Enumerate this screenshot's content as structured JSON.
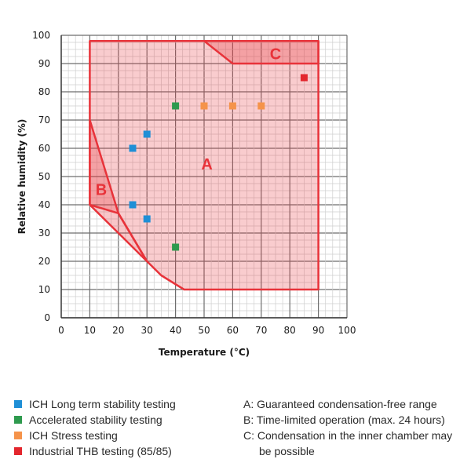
{
  "chart_data": {
    "type": "scatter",
    "xlabel": "Temperature (°C)",
    "ylabel": "Relative humidity (%)",
    "xlim": [
      0,
      100
    ],
    "ylim": [
      0,
      100
    ],
    "xticks": [
      "0",
      "10",
      "20",
      "30",
      "40",
      "50",
      "60",
      "70",
      "80",
      "90",
      "100"
    ],
    "yticks": [
      "0",
      "10",
      "20",
      "30",
      "40",
      "50",
      "60",
      "70",
      "80",
      "90",
      "100"
    ],
    "grid": true,
    "regions": [
      {
        "label": "A",
        "color": "#e8333a",
        "points": [
          [
            10,
            98
          ],
          [
            90,
            98
          ],
          [
            90,
            10
          ],
          [
            43,
            10
          ],
          [
            35,
            15
          ],
          [
            30,
            20
          ],
          [
            20,
            37
          ],
          [
            10,
            40
          ],
          [
            10,
            70
          ],
          [
            10,
            98
          ]
        ]
      },
      {
        "label": "B",
        "color": "#e8333a",
        "points": [
          [
            10,
            70
          ],
          [
            20,
            37
          ],
          [
            30,
            20
          ],
          [
            10,
            40
          ]
        ]
      },
      {
        "label": "C",
        "color": "#e8333a",
        "points": [
          [
            50,
            98
          ],
          [
            90,
            98
          ],
          [
            90,
            90
          ],
          [
            60,
            90
          ]
        ]
      }
    ],
    "region_label_positions": [
      [
        51,
        54
      ],
      [
        14,
        45
      ],
      [
        75,
        93
      ]
    ],
    "series": [
      {
        "name": "ICH Long term stability testing",
        "color": "#1f8fd6",
        "points": [
          [
            25,
            60
          ],
          [
            30,
            65
          ],
          [
            25,
            40
          ],
          [
            30,
            35
          ]
        ]
      },
      {
        "name": "Accelerated stability testing",
        "color": "#2e9a4e",
        "points": [
          [
            40,
            75
          ],
          [
            40,
            25
          ]
        ]
      },
      {
        "name": "ICH Stress testing",
        "color": "#f5934a",
        "points": [
          [
            50,
            75
          ],
          [
            60,
            75
          ],
          [
            70,
            75
          ]
        ]
      },
      {
        "name": "Industrial THB testing (85/85)",
        "color": "#e3262d",
        "points": [
          [
            85,
            85
          ]
        ]
      }
    ]
  },
  "legend": {
    "items": [
      {
        "label": "ICH Long term stability testing",
        "color": "#1f8fd6"
      },
      {
        "label": "Accelerated stability testing",
        "color": "#2e9a4e"
      },
      {
        "label": "ICH Stress testing",
        "color": "#f5934a"
      },
      {
        "label": "Industrial THB testing (85/85)",
        "color": "#e3262d"
      }
    ]
  },
  "notes": {
    "a": "A: Guaranteed condensation-free range",
    "b": "B: Time-limited operation (max. 24 hours)",
    "c1": "C: Condensation in the inner chamber may",
    "c2": "be possible"
  }
}
